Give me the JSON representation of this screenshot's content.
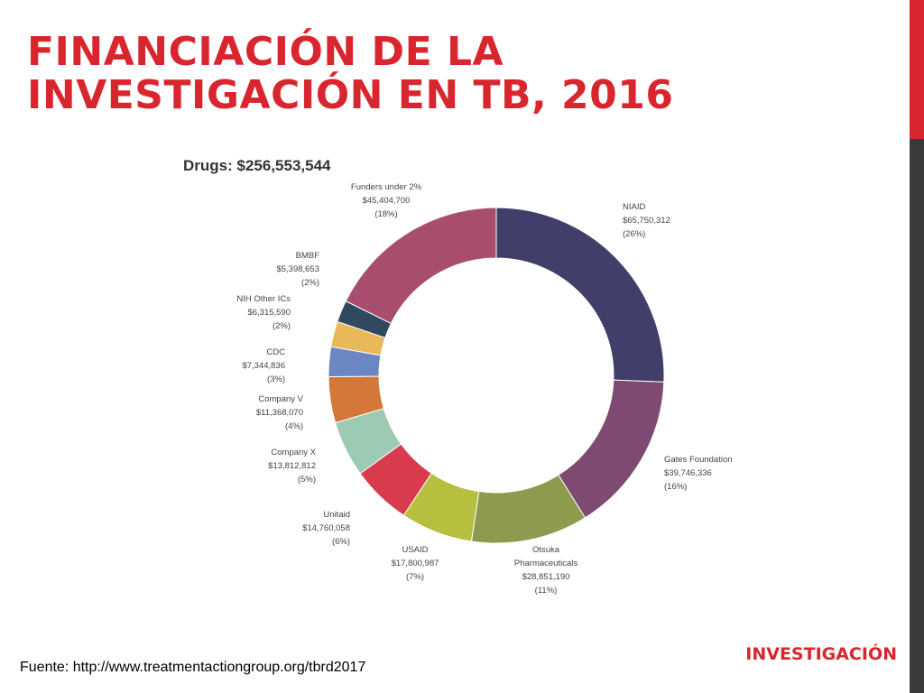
{
  "slide": {
    "title_lines": [
      "FINANCIACIÓN DE LA",
      "INVESTIGACIÓN EN TB, 2016"
    ],
    "source": "Fuente: http://www.treatmentactiongroup.org/tbrd2017",
    "section_tag": "INVESTIGACIÓN",
    "colors": {
      "accent": "#d9262e",
      "sidebar_gray": "#3a3a3a"
    }
  },
  "chart_data": {
    "type": "pie",
    "title": "Drugs: $256,553,544",
    "slices": [
      {
        "name": "NIAID",
        "amount": "$65,750,312",
        "percent": "(26%)",
        "value": 65750312,
        "color": "#423e6a"
      },
      {
        "name": "Gates Foundation",
        "amount": "$39,746,336",
        "percent": "(16%)",
        "value": 39746336,
        "color": "#7e4a72"
      },
      {
        "name": "Otsuka Pharmaceuticals",
        "name_lines": [
          "Otsuka",
          "Pharmaceuticals"
        ],
        "amount": "$28,851,190",
        "percent": "(11%)",
        "value": 28851190,
        "color": "#8e9a4e"
      },
      {
        "name": "USAID",
        "amount": "$17,800,987",
        "percent": "(7%)",
        "value": 17800987,
        "color": "#b6c03e"
      },
      {
        "name": "Unitaid",
        "amount": "$14,760,058",
        "percent": "(6%)",
        "value": 14760058,
        "color": "#d83b4d"
      },
      {
        "name": "Company X",
        "amount": "$13,812,812",
        "percent": "(5%)",
        "value": 13812812,
        "color": "#9ccab3"
      },
      {
        "name": "Company V",
        "amount": "$11,368,070",
        "percent": "(4%)",
        "value": 11368070,
        "color": "#d4783a"
      },
      {
        "name": "CDC",
        "amount": "$7,344,836",
        "percent": "(3%)",
        "value": 7344836,
        "color": "#6a87c4"
      },
      {
        "name": "NIH Other ICs",
        "amount": "$6,315,590",
        "percent": "(2%)",
        "value": 6315590,
        "color": "#e8b85a"
      },
      {
        "name": "BMBF",
        "amount": "$5,398,653",
        "percent": "(2%)",
        "value": 5398653,
        "color": "#2f4a5e"
      },
      {
        "name": "Funders under 2%",
        "amount": "$45,404,700",
        "percent": "(18%)",
        "value": 45404700,
        "color": "#a84d6e"
      }
    ]
  }
}
